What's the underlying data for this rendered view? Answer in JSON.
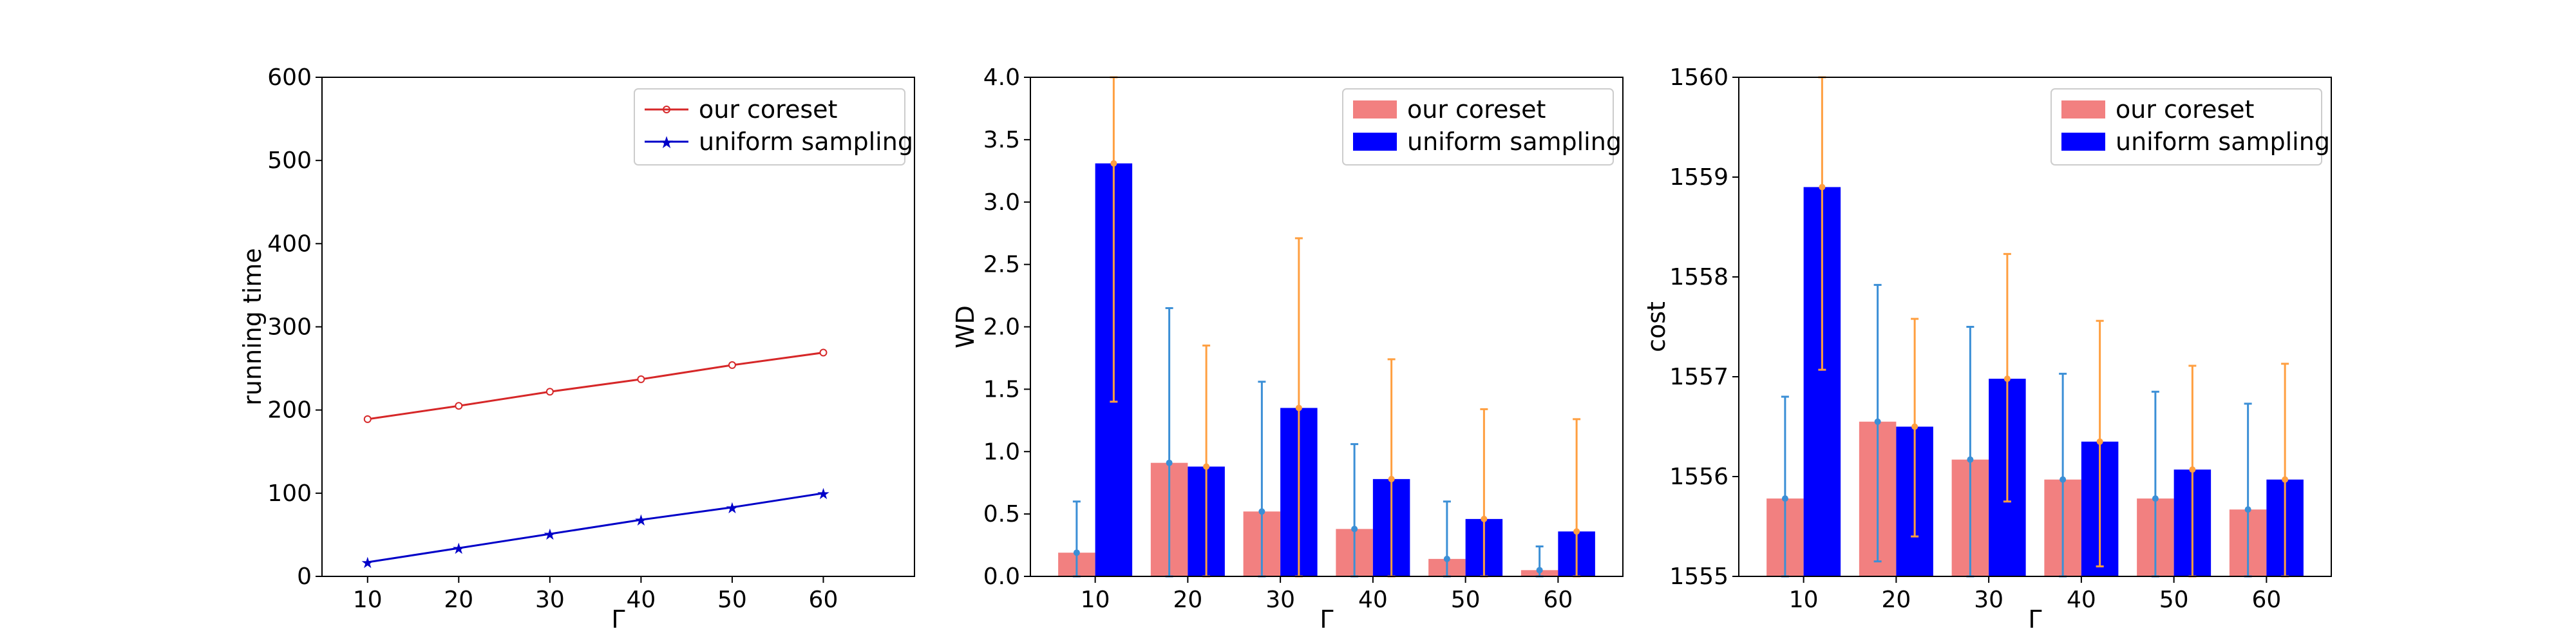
{
  "chart_data": [
    {
      "type": "line",
      "xlabel": "Γ",
      "ylabel": "running time",
      "xlim": [
        5,
        70
      ],
      "ylim": [
        0,
        600
      ],
      "x": [
        10,
        20,
        30,
        40,
        50,
        60
      ],
      "xticks": [
        10,
        20,
        30,
        40,
        50,
        60
      ],
      "yticks": [
        0,
        100,
        200,
        300,
        400,
        500,
        600
      ],
      "legend_position": "upper right",
      "series": [
        {
          "name": "our coreset",
          "color": "#d62728",
          "marker": "o",
          "values": [
            189,
            205,
            222,
            237,
            254,
            269
          ]
        },
        {
          "name": "uniform sampling",
          "color": "#0000c8",
          "marker": "*",
          "values": [
            17,
            34,
            51,
            68,
            83,
            100
          ]
        }
      ]
    },
    {
      "type": "bar",
      "xlabel": "Γ",
      "ylabel": "WD",
      "ylim": [
        0,
        4.0
      ],
      "categories": [
        "10",
        "20",
        "30",
        "40",
        "50",
        "60"
      ],
      "yticks": [
        0.0,
        0.5,
        1.0,
        1.5,
        2.0,
        2.5,
        3.0,
        3.5,
        4.0
      ],
      "ytick_format": 1,
      "legend_position": "upper right",
      "series": [
        {
          "name": "our coreset",
          "color": "#f28080",
          "err_color": "#3b8fd6",
          "values": [
            0.19,
            0.91,
            0.52,
            0.38,
            0.14,
            0.05
          ],
          "err_low": [
            0.0,
            0.0,
            0.0,
            0.0,
            0.0,
            0.0
          ],
          "err_high": [
            0.6,
            2.15,
            1.56,
            1.06,
            0.6,
            0.24
          ]
        },
        {
          "name": "uniform sampling",
          "color": "#0000ff",
          "err_color": "#ff9f40",
          "values": [
            3.31,
            0.88,
            1.35,
            0.78,
            0.46,
            0.36
          ],
          "err_low": [
            1.4,
            0.0,
            0.0,
            0.0,
            0.0,
            0.0
          ],
          "err_high": [
            4.0,
            1.85,
            2.71,
            1.74,
            1.34,
            1.26
          ]
        }
      ]
    },
    {
      "type": "bar",
      "xlabel": "Γ",
      "ylabel": "cost",
      "ylim": [
        1555,
        1560
      ],
      "categories": [
        "10",
        "20",
        "30",
        "40",
        "50",
        "60"
      ],
      "yticks": [
        1555,
        1556,
        1557,
        1558,
        1559,
        1560
      ],
      "ytick_format": 0,
      "legend_position": "upper right",
      "series": [
        {
          "name": "our coreset",
          "color": "#f28080",
          "err_color": "#3b8fd6",
          "values": [
            1555.78,
            1556.55,
            1556.17,
            1555.97,
            1555.78,
            1555.67
          ],
          "err_low": [
            1555.0,
            1555.15,
            1555.0,
            1555.0,
            1555.0,
            1555.0
          ],
          "err_high": [
            1556.8,
            1557.92,
            1557.5,
            1557.03,
            1556.85,
            1556.73
          ]
        },
        {
          "name": "uniform sampling",
          "color": "#0000ff",
          "err_color": "#ff9f40",
          "values": [
            1558.9,
            1556.5,
            1556.98,
            1556.35,
            1556.07,
            1555.97
          ],
          "err_low": [
            1557.07,
            1555.4,
            1555.75,
            1555.1,
            1555.0,
            1555.0
          ],
          "err_high": [
            1560.0,
            1557.58,
            1558.23,
            1557.56,
            1557.11,
            1557.13
          ]
        }
      ]
    }
  ]
}
